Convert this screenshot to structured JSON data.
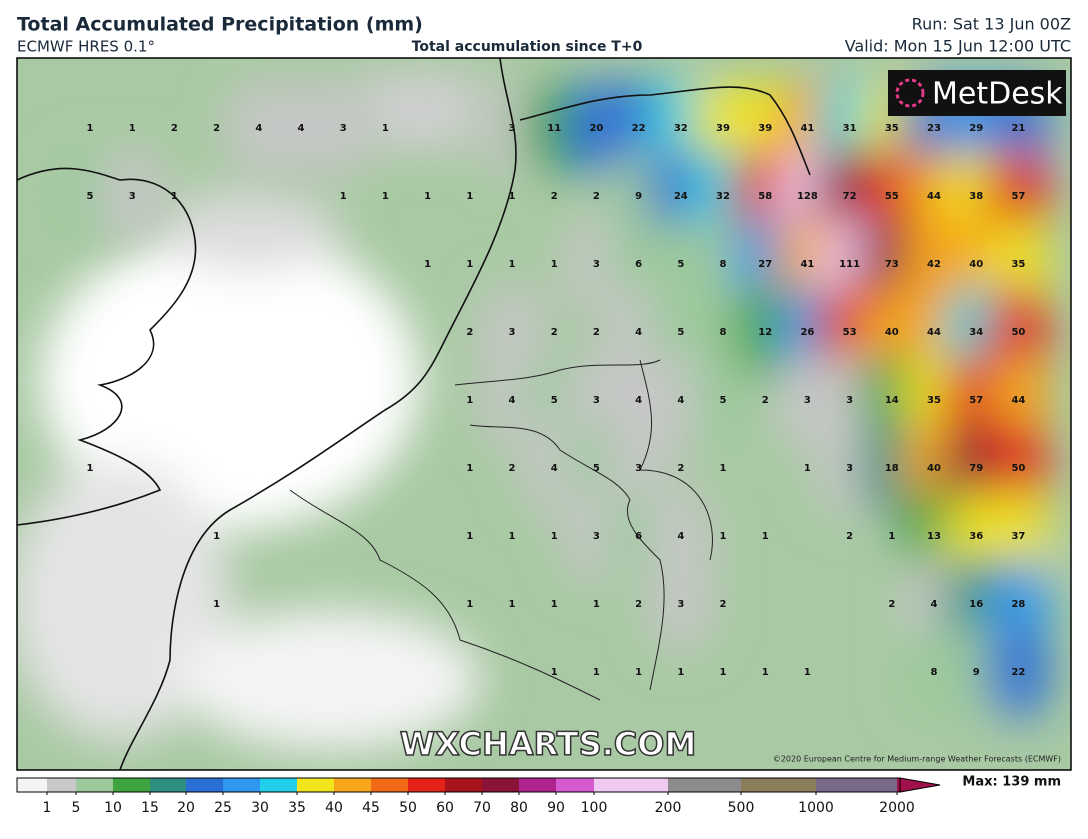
{
  "header": {
    "title": "Total Accumulated Precipitation (mm)",
    "model": "ECMWF HRES 0.1°",
    "subtitle": "Total accumulation since T+0",
    "run": "Run: Sat 13 Jun 00Z",
    "valid": "Valid: Mon 15 Jun 12:00 UTC"
  },
  "logo": "MetDesk",
  "watermark": "WXCHARTS.COM",
  "copyright": "©2020 European Centre for Medium-range Weather Forecasts (ECMWF)",
  "max_label": "Max: 139 mm",
  "grid": [
    [
      1,
      1,
      2,
      2,
      4,
      4,
      3,
      1,
      null,
      null,
      3,
      11,
      20,
      22,
      32,
      39,
      39,
      41,
      31,
      35,
      23,
      29,
      21
    ],
    [
      5,
      3,
      1,
      null,
      null,
      null,
      1,
      1,
      1,
      1,
      1,
      2,
      2,
      9,
      24,
      32,
      58,
      128,
      72,
      55,
      44,
      38,
      57
    ],
    [
      null,
      null,
      null,
      null,
      null,
      null,
      null,
      null,
      1,
      1,
      1,
      1,
      3,
      6,
      5,
      8,
      27,
      41,
      111,
      73,
      42,
      40,
      35
    ],
    [
      null,
      null,
      null,
      null,
      null,
      null,
      null,
      null,
      null,
      2,
      3,
      2,
      2,
      4,
      5,
      8,
      12,
      26,
      53,
      40,
      44,
      34,
      50
    ],
    [
      null,
      null,
      null,
      null,
      null,
      null,
      null,
      null,
      null,
      1,
      4,
      5,
      3,
      4,
      4,
      5,
      2,
      3,
      3,
      14,
      35,
      57,
      44
    ],
    [
      1,
      null,
      null,
      null,
      null,
      null,
      null,
      null,
      null,
      1,
      2,
      4,
      5,
      3,
      2,
      1,
      null,
      1,
      3,
      18,
      40,
      79,
      50
    ],
    [
      null,
      null,
      null,
      1,
      null,
      null,
      null,
      null,
      null,
      1,
      1,
      1,
      3,
      6,
      4,
      1,
      1,
      null,
      2,
      1,
      13,
      36,
      37
    ],
    [
      null,
      null,
      null,
      1,
      null,
      null,
      null,
      null,
      null,
      1,
      1,
      1,
      1,
      2,
      3,
      2,
      null,
      null,
      null,
      2,
      4,
      16,
      28
    ],
    [
      null,
      null,
      null,
      null,
      null,
      null,
      null,
      null,
      null,
      null,
      null,
      1,
      1,
      1,
      1,
      1,
      1,
      1,
      null,
      null,
      8,
      9,
      22
    ]
  ],
  "colorbar": {
    "ticks": [
      1,
      5,
      10,
      15,
      20,
      25,
      30,
      35,
      40,
      45,
      50,
      60,
      70,
      80,
      90,
      100,
      200,
      500,
      1000,
      2000
    ],
    "colors": [
      "#c8c8c8",
      "#9cc99c",
      "#3fa33f",
      "#2f8f7f",
      "#2a6fd6",
      "#2f97f0",
      "#21d0e8",
      "#f2e51c",
      "#f7a51a",
      "#f26a18",
      "#e42218",
      "#a8141c",
      "#8a1438",
      "#b0238f",
      "#d55ad0",
      "#f0c8f0",
      "#8c8c8c",
      "#8a7d5a",
      "#7a6a8a",
      "#a0104a"
    ]
  }
}
